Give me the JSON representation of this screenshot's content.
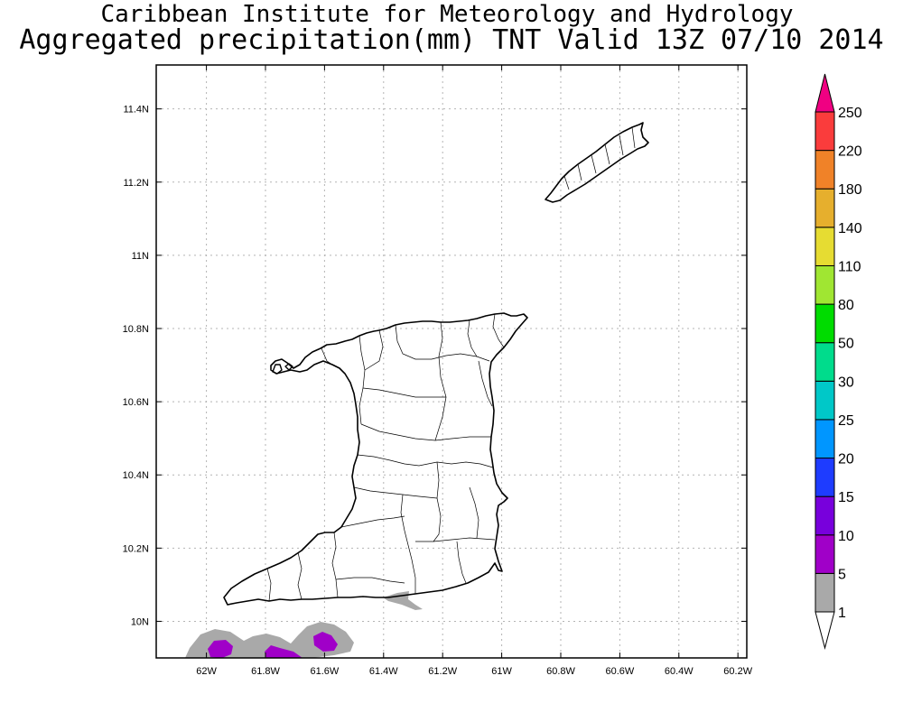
{
  "title": {
    "line1": "Caribbean Institute for Meteorology and Hydrology",
    "line2": "Aggregated precipitation(mm) TNT Valid 13Z 07/10 2014"
  },
  "axes": {
    "lon_ticks": [
      {
        "value": -62.0,
        "label": "62W"
      },
      {
        "value": -61.8,
        "label": "61.8W"
      },
      {
        "value": -61.6,
        "label": "61.6W"
      },
      {
        "value": -61.4,
        "label": "61.4W"
      },
      {
        "value": -61.2,
        "label": "61.2W"
      },
      {
        "value": -61.0,
        "label": "61W"
      },
      {
        "value": -60.8,
        "label": "60.8W"
      },
      {
        "value": -60.6,
        "label": "60.6W"
      },
      {
        "value": -60.4,
        "label": "60.4W"
      },
      {
        "value": -60.2,
        "label": "60.2W"
      }
    ],
    "lat_ticks": [
      {
        "value": 10.0,
        "label": "10N"
      },
      {
        "value": 10.2,
        "label": "10.2N"
      },
      {
        "value": 10.4,
        "label": "10.4N"
      },
      {
        "value": 10.6,
        "label": "10.6N"
      },
      {
        "value": 10.8,
        "label": "10.8N"
      },
      {
        "value": 11.0,
        "label": "11N"
      },
      {
        "value": 11.2,
        "label": "11.2N"
      },
      {
        "value": 11.4,
        "label": "11.4N"
      }
    ],
    "lon_range": [
      -62.17,
      -60.17
    ],
    "lat_range": [
      9.9,
      11.52
    ],
    "grid": true
  },
  "colorbar": {
    "levels": [
      {
        "label": "1",
        "color": "#a9a9a9"
      },
      {
        "label": "5",
        "color": "#a000c8"
      },
      {
        "label": "10",
        "color": "#7800dc"
      },
      {
        "label": "15",
        "color": "#1e3cff"
      },
      {
        "label": "20",
        "color": "#0096ff"
      },
      {
        "label": "25",
        "color": "#00c8c8"
      },
      {
        "label": "30",
        "color": "#00dc8c"
      },
      {
        "label": "50",
        "color": "#00dc00"
      },
      {
        "label": "80",
        "color": "#a0e632"
      },
      {
        "label": "110",
        "color": "#e6dc32"
      },
      {
        "label": "140",
        "color": "#e6af2d"
      },
      {
        "label": "180",
        "color": "#f08228"
      },
      {
        "label": "220",
        "color": "#fa3c3c"
      },
      {
        "label": "250",
        "color": "#f00082"
      }
    ],
    "low_color": "#ffffff"
  },
  "precip_areas": [
    {
      "level": "1",
      "color": "#a9a9a9"
    },
    {
      "level": "5",
      "color": "#a000c8"
    }
  ]
}
